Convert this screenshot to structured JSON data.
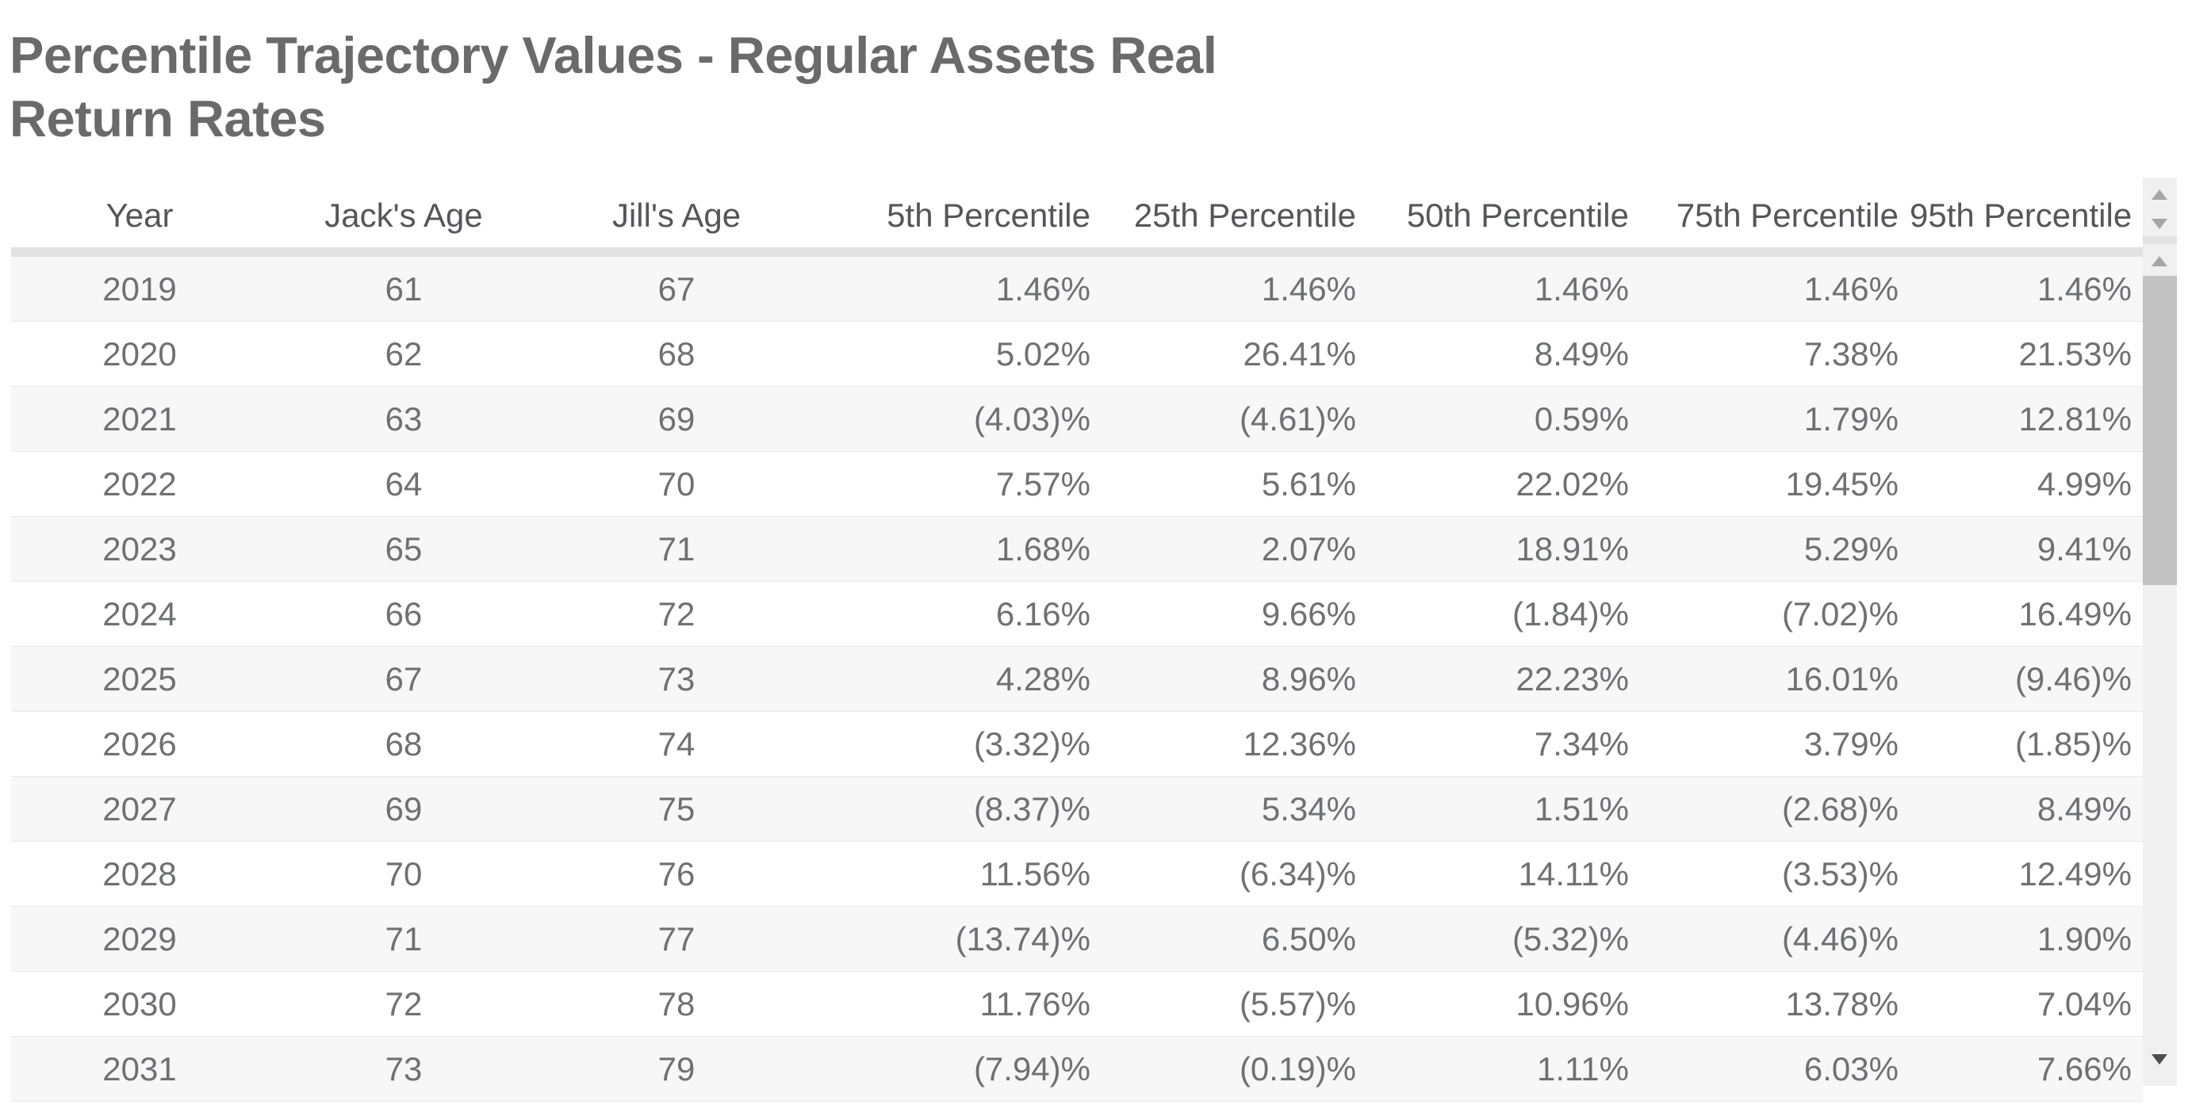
{
  "page": {
    "title_line1": "Percentile Trajectory Values - Regular Assets Real",
    "title_line2": "Return Rates",
    "title_full": "Percentile Trajectory Values - Regular Assets Real Return Rates"
  },
  "table": {
    "columns": [
      {
        "label": "Year",
        "align": "center"
      },
      {
        "label": "Jack's Age",
        "align": "center"
      },
      {
        "label": "Jill's Age",
        "align": "center"
      },
      {
        "label": "5th Percentile",
        "align": "right"
      },
      {
        "label": "25th Percentile",
        "align": "right"
      },
      {
        "label": "50th Percentile",
        "align": "right"
      },
      {
        "label": "75th Percentile",
        "align": "right"
      },
      {
        "label": "95th Percentile",
        "align": "right"
      }
    ],
    "rows": [
      [
        "2019",
        "61",
        "67",
        "1.46%",
        "1.46%",
        "1.46%",
        "1.46%",
        "1.46%"
      ],
      [
        "2020",
        "62",
        "68",
        "5.02%",
        "26.41%",
        "8.49%",
        "7.38%",
        "21.53%"
      ],
      [
        "2021",
        "63",
        "69",
        "(4.03)%",
        "(4.61)%",
        "0.59%",
        "1.79%",
        "12.81%"
      ],
      [
        "2022",
        "64",
        "70",
        "7.57%",
        "5.61%",
        "22.02%",
        "19.45%",
        "4.99%"
      ],
      [
        "2023",
        "65",
        "71",
        "1.68%",
        "2.07%",
        "18.91%",
        "5.29%",
        "9.41%"
      ],
      [
        "2024",
        "66",
        "72",
        "6.16%",
        "9.66%",
        "(1.84)%",
        "(7.02)%",
        "16.49%"
      ],
      [
        "2025",
        "67",
        "73",
        "4.28%",
        "8.96%",
        "22.23%",
        "16.01%",
        "(9.46)%"
      ],
      [
        "2026",
        "68",
        "74",
        "(3.32)%",
        "12.36%",
        "7.34%",
        "3.79%",
        "(1.85)%"
      ],
      [
        "2027",
        "69",
        "75",
        "(8.37)%",
        "5.34%",
        "1.51%",
        "(2.68)%",
        "8.49%"
      ],
      [
        "2028",
        "70",
        "76",
        "11.56%",
        "(6.34)%",
        "14.11%",
        "(3.53)%",
        "12.49%"
      ],
      [
        "2029",
        "71",
        "77",
        "(13.74)%",
        "6.50%",
        "(5.32)%",
        "(4.46)%",
        "1.90%"
      ],
      [
        "2030",
        "72",
        "78",
        "11.76%",
        "(5.57)%",
        "10.96%",
        "13.78%",
        "7.04%"
      ],
      [
        "2031",
        "73",
        "79",
        "(7.94)%",
        "(0.19)%",
        "1.11%",
        "6.03%",
        "7.66%"
      ]
    ]
  },
  "scrollbar": {
    "icons": [
      "scroll-up-icon",
      "scroll-down-icon",
      "scroll-up-icon",
      "scroll-down-icon"
    ]
  },
  "colors": {
    "title_text": "#6a6a6a",
    "header_text": "#55565a",
    "cell_text": "#6f7073",
    "row_stripe": "#f7f7f7",
    "header_divider": "#e1e1e1",
    "row_border": "#e8e8e8",
    "scroll_track": "#f0f0f0",
    "scroll_thumb": "#c1c1c1",
    "scroll_arrow": "#a6a6a6",
    "scroll_arrow_dark": "#4d4d4d"
  }
}
